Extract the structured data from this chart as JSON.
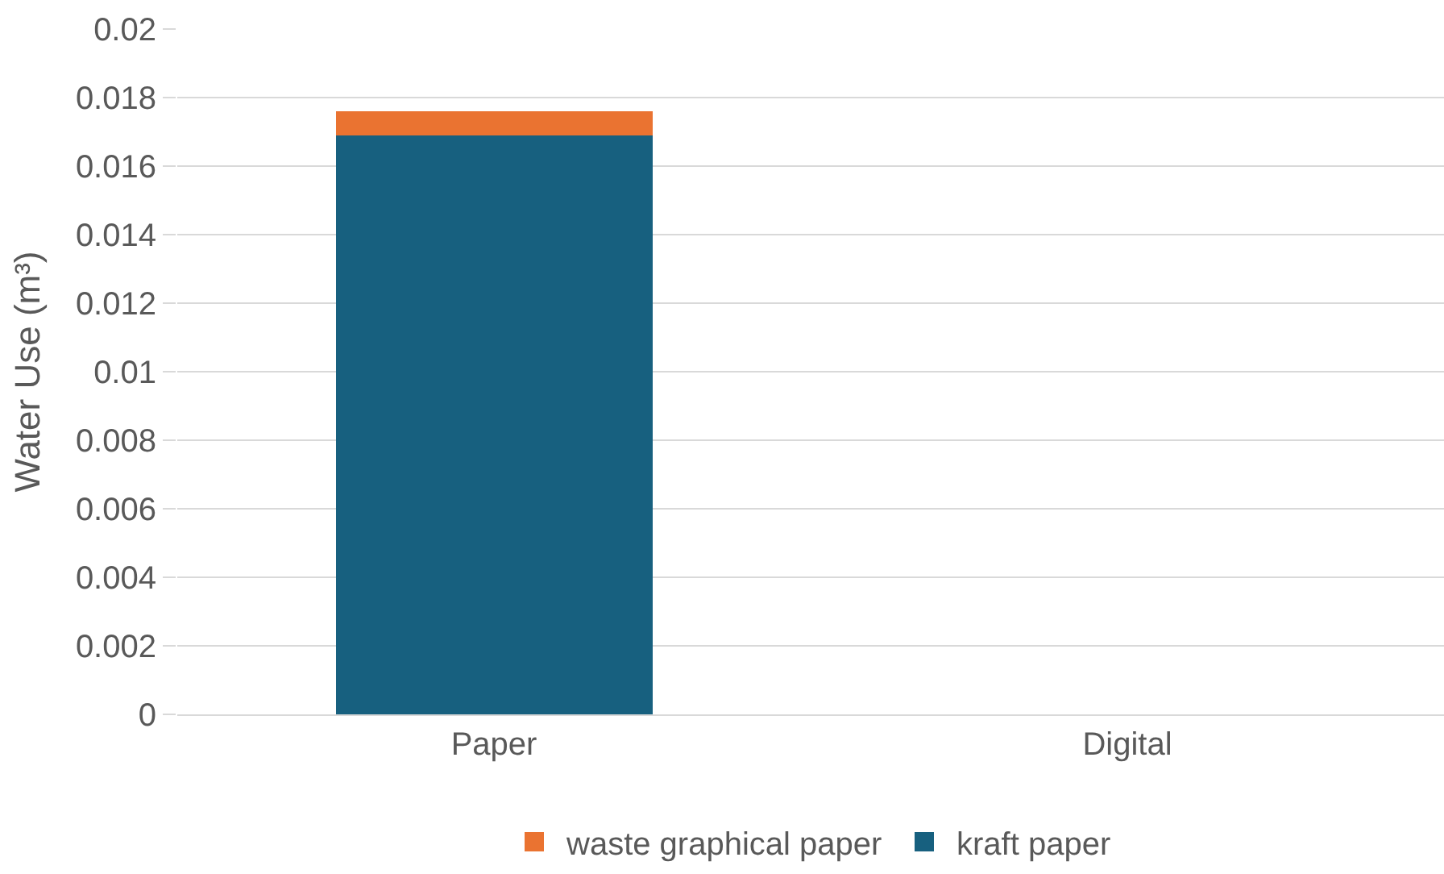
{
  "chart_data": {
    "type": "bar",
    "stacked": true,
    "ylabel": "Water Use (m³)",
    "categories": [
      "Paper",
      "Digital"
    ],
    "series": [
      {
        "name": "kraft paper",
        "color": "#17607f",
        "values": [
          0.0169,
          0
        ]
      },
      {
        "name": "waste graphical paper",
        "color": "#ea7331",
        "values": [
          0.0007,
          0
        ]
      }
    ],
    "ylim": [
      0,
      0.02
    ],
    "yticks": [
      0,
      0.002,
      0.004,
      0.006,
      0.008,
      0.01,
      0.012,
      0.014,
      0.016,
      0.018,
      0.02
    ],
    "grid": "y",
    "legend": "bottom"
  }
}
